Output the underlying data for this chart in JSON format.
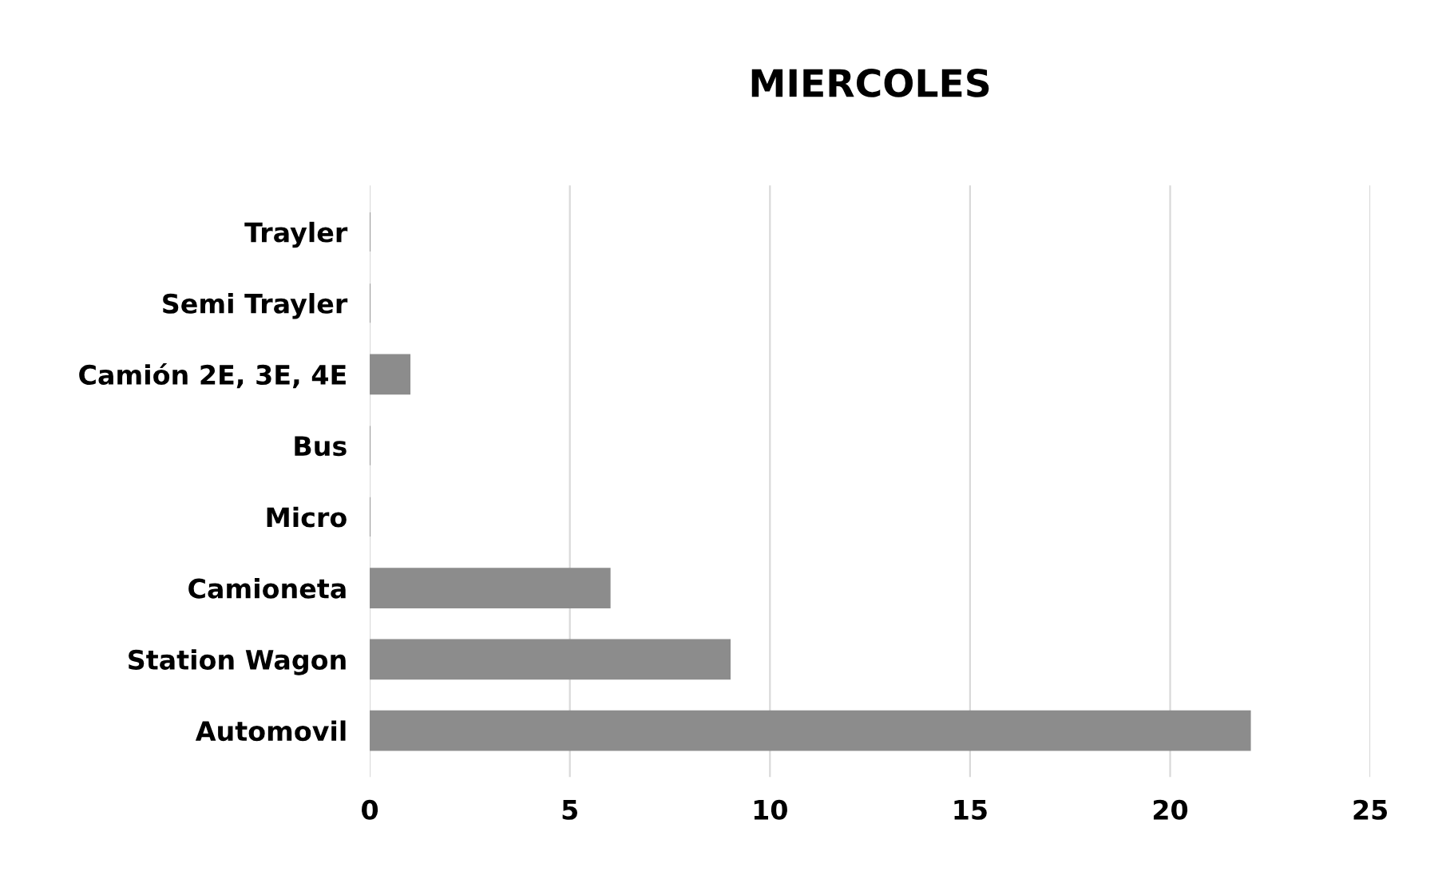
{
  "chart_data": {
    "type": "bar",
    "orientation": "horizontal",
    "title": "MIERCOLES",
    "categories": [
      "Trayler",
      "Semi Trayler",
      "Camión 2E, 3E, 4E",
      "Bus",
      "Micro",
      "Camioneta",
      "Station Wagon",
      "Automovil"
    ],
    "values": [
      0,
      0,
      1,
      0,
      0,
      6,
      9,
      22
    ],
    "color": "#8c8c8c",
    "xlim": [
      0,
      25
    ],
    "xticks": [
      0,
      5,
      10,
      15,
      20,
      25
    ],
    "grid": "x"
  }
}
